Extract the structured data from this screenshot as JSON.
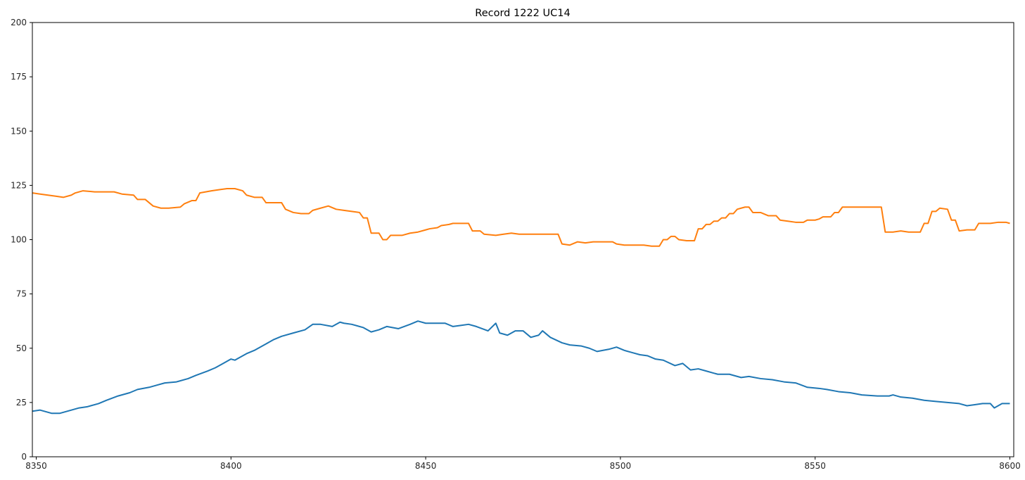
{
  "chart_data": {
    "type": "line",
    "title": "Record 1222 UC14",
    "xlabel": "",
    "ylabel": "",
    "xlim": [
      8349,
      8601
    ],
    "ylim": [
      0,
      200
    ],
    "grid": false,
    "x_ticks": [
      8350,
      8400,
      8450,
      8500,
      8550,
      8600
    ],
    "y_ticks": [
      0,
      25,
      50,
      75,
      100,
      125,
      150,
      175,
      200
    ],
    "series": [
      {
        "name": "series-1",
        "color": "#1f77b4",
        "points": [
          [
            8349,
            21
          ],
          [
            8351,
            21.5
          ],
          [
            8354,
            20
          ],
          [
            8356,
            20
          ],
          [
            8359,
            21.5
          ],
          [
            8361,
            22.5
          ],
          [
            8363,
            23
          ],
          [
            8366,
            24.5
          ],
          [
            8368,
            26
          ],
          [
            8371,
            28
          ],
          [
            8374,
            29.5
          ],
          [
            8376,
            31
          ],
          [
            8379,
            32
          ],
          [
            8381,
            33
          ],
          [
            8383,
            34
          ],
          [
            8386,
            34.5
          ],
          [
            8389,
            36
          ],
          [
            8391,
            37.5
          ],
          [
            8394,
            39.5
          ],
          [
            8396,
            41
          ],
          [
            8398,
            43
          ],
          [
            8400,
            45
          ],
          [
            8401,
            44.5
          ],
          [
            8404,
            47.5
          ],
          [
            8406,
            49
          ],
          [
            8409,
            52
          ],
          [
            8411,
            54
          ],
          [
            8413,
            55.5
          ],
          [
            8416,
            57
          ],
          [
            8419,
            58.5
          ],
          [
            8421,
            61
          ],
          [
            8423,
            61
          ],
          [
            8426,
            60
          ],
          [
            8428,
            62
          ],
          [
            8429,
            61.5
          ],
          [
            8431,
            61
          ],
          [
            8434,
            59.5
          ],
          [
            8436,
            57.5
          ],
          [
            8438,
            58.5
          ],
          [
            8440,
            60
          ],
          [
            8443,
            59
          ],
          [
            8446,
            61
          ],
          [
            8448,
            62.5
          ],
          [
            8450,
            61.5
          ],
          [
            8453,
            61.5
          ],
          [
            8455,
            61.5
          ],
          [
            8457,
            60
          ],
          [
            8459,
            60.5
          ],
          [
            8461,
            61
          ],
          [
            8463,
            60
          ],
          [
            8466,
            58
          ],
          [
            8468,
            61.5
          ],
          [
            8469,
            57
          ],
          [
            8471,
            56
          ],
          [
            8473,
            58
          ],
          [
            8475,
            58
          ],
          [
            8477,
            55
          ],
          [
            8479,
            56
          ],
          [
            8480,
            58
          ],
          [
            8482,
            55
          ],
          [
            8485,
            52.5
          ],
          [
            8487,
            51.5
          ],
          [
            8490,
            51
          ],
          [
            8492,
            50
          ],
          [
            8494,
            48.5
          ],
          [
            8497,
            49.5
          ],
          [
            8499,
            50.5
          ],
          [
            8501,
            49
          ],
          [
            8503,
            48
          ],
          [
            8505,
            47
          ],
          [
            8507,
            46.5
          ],
          [
            8509,
            45
          ],
          [
            8511,
            44.5
          ],
          [
            8514,
            42
          ],
          [
            8516,
            43
          ],
          [
            8518,
            40
          ],
          [
            8520,
            40.5
          ],
          [
            8522,
            39.5
          ],
          [
            8525,
            38
          ],
          [
            8528,
            38
          ],
          [
            8531,
            36.5
          ],
          [
            8533,
            37
          ],
          [
            8536,
            36
          ],
          [
            8539,
            35.5
          ],
          [
            8542,
            34.5
          ],
          [
            8545,
            34
          ],
          [
            8548,
            32
          ],
          [
            8551,
            31.5
          ],
          [
            8553,
            31
          ],
          [
            8556,
            30
          ],
          [
            8559,
            29.5
          ],
          [
            8562,
            28.5
          ],
          [
            8566,
            28
          ],
          [
            8569,
            28
          ],
          [
            8570,
            28.5
          ],
          [
            8572,
            27.5
          ],
          [
            8575,
            27
          ],
          [
            8578,
            26
          ],
          [
            8581,
            25.5
          ],
          [
            8584,
            25
          ],
          [
            8587,
            24.5
          ],
          [
            8589,
            23.5
          ],
          [
            8591,
            24
          ],
          [
            8593,
            24.5
          ],
          [
            8595,
            24.5
          ],
          [
            8596,
            22.5
          ],
          [
            8598,
            24.5
          ],
          [
            8600,
            24.5
          ]
        ]
      },
      {
        "name": "series-2",
        "color": "#ff7f0e",
        "points": [
          [
            8349,
            121.5
          ],
          [
            8351,
            121
          ],
          [
            8353,
            120.5
          ],
          [
            8355,
            120
          ],
          [
            8357,
            119.5
          ],
          [
            8359,
            120.5
          ],
          [
            8360,
            121.5
          ],
          [
            8362,
            122.5
          ],
          [
            8365,
            122
          ],
          [
            8367,
            122
          ],
          [
            8370,
            122
          ],
          [
            8372,
            121
          ],
          [
            8375,
            120.5
          ],
          [
            8376,
            118.5
          ],
          [
            8378,
            118.5
          ],
          [
            8380,
            115.5
          ],
          [
            8382,
            114.5
          ],
          [
            8384,
            114.5
          ],
          [
            8387,
            115
          ],
          [
            8388,
            116.5
          ],
          [
            8390,
            118
          ],
          [
            8391,
            118
          ],
          [
            8392,
            121.5
          ],
          [
            8395,
            122.5
          ],
          [
            8397,
            123
          ],
          [
            8399,
            123.5
          ],
          [
            8401,
            123.5
          ],
          [
            8403,
            122.5
          ],
          [
            8404,
            120.5
          ],
          [
            8406,
            119.5
          ],
          [
            8408,
            119.5
          ],
          [
            8409,
            117
          ],
          [
            8413,
            117
          ],
          [
            8414,
            114
          ],
          [
            8416,
            112.5
          ],
          [
            8418,
            112
          ],
          [
            8420,
            112
          ],
          [
            8421,
            113.5
          ],
          [
            8423,
            114.5
          ],
          [
            8425,
            115.5
          ],
          [
            8427,
            114
          ],
          [
            8429,
            113.5
          ],
          [
            8431,
            113
          ],
          [
            8433,
            112.5
          ],
          [
            8434,
            110
          ],
          [
            8435,
            110
          ],
          [
            8436,
            103
          ],
          [
            8438,
            103
          ],
          [
            8439,
            100
          ],
          [
            8440,
            100
          ],
          [
            8441,
            102
          ],
          [
            8444,
            102
          ],
          [
            8446,
            103
          ],
          [
            8448,
            103.5
          ],
          [
            8450,
            104.5
          ],
          [
            8451,
            105
          ],
          [
            8453,
            105.5
          ],
          [
            8454,
            106.5
          ],
          [
            8456,
            107
          ],
          [
            8457,
            107.5
          ],
          [
            8461,
            107.5
          ],
          [
            8462,
            104
          ],
          [
            8464,
            104
          ],
          [
            8465,
            102.5
          ],
          [
            8468,
            102
          ],
          [
            8470,
            102.5
          ],
          [
            8472,
            103
          ],
          [
            8474,
            102.5
          ],
          [
            8484,
            102.5
          ],
          [
            8485,
            98
          ],
          [
            8487,
            97.5
          ],
          [
            8489,
            99
          ],
          [
            8491,
            98.5
          ],
          [
            8493,
            99
          ],
          [
            8498,
            99
          ],
          [
            8499,
            98
          ],
          [
            8501,
            97.5
          ],
          [
            8506,
            97.5
          ],
          [
            8508,
            97
          ],
          [
            8510,
            97
          ],
          [
            8511,
            100
          ],
          [
            8512,
            100
          ],
          [
            8513,
            101.5
          ],
          [
            8514,
            101.5
          ],
          [
            8515,
            100
          ],
          [
            8517,
            99.5
          ],
          [
            8519,
            99.5
          ],
          [
            8520,
            105
          ],
          [
            8521,
            105
          ],
          [
            8522,
            107
          ],
          [
            8523,
            107
          ],
          [
            8524,
            108.5
          ],
          [
            8525,
            108.5
          ],
          [
            8526,
            110
          ],
          [
            8527,
            110
          ],
          [
            8528,
            112
          ],
          [
            8529,
            112
          ],
          [
            8530,
            114
          ],
          [
            8531,
            114.5
          ],
          [
            8532,
            115
          ],
          [
            8533,
            115
          ],
          [
            8534,
            112.5
          ],
          [
            8536,
            112.5
          ],
          [
            8538,
            111
          ],
          [
            8540,
            111
          ],
          [
            8541,
            109
          ],
          [
            8543,
            108.5
          ],
          [
            8545,
            108
          ],
          [
            8547,
            108
          ],
          [
            8548,
            109
          ],
          [
            8550,
            109
          ],
          [
            8551,
            109.5
          ],
          [
            8552,
            110.5
          ],
          [
            8554,
            110.5
          ],
          [
            8555,
            112.5
          ],
          [
            8556,
            112.5
          ],
          [
            8557,
            115
          ],
          [
            8567,
            115
          ],
          [
            8568,
            103.5
          ],
          [
            8570,
            103.5
          ],
          [
            8572,
            104
          ],
          [
            8574,
            103.5
          ],
          [
            8577,
            103.5
          ],
          [
            8578,
            107.5
          ],
          [
            8579,
            107.5
          ],
          [
            8580,
            113
          ],
          [
            8581,
            113
          ],
          [
            8582,
            114.5
          ],
          [
            8584,
            114
          ],
          [
            8585,
            109
          ],
          [
            8586,
            109
          ],
          [
            8587,
            104
          ],
          [
            8589,
            104.5
          ],
          [
            8591,
            104.5
          ],
          [
            8592,
            107.5
          ],
          [
            8595,
            107.5
          ],
          [
            8597,
            108
          ],
          [
            8599,
            108
          ],
          [
            8600,
            107.5
          ]
        ]
      }
    ]
  }
}
